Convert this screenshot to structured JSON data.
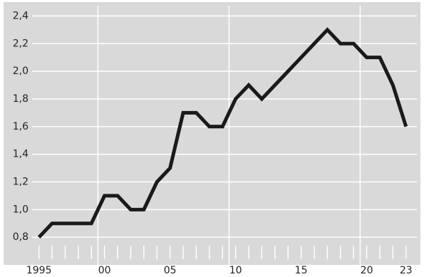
{
  "chart_data": {
    "type": "line",
    "x": [
      1995,
      1996,
      1997,
      1998,
      1999,
      2000,
      2001,
      2002,
      2003,
      2004,
      2005,
      2006,
      2007,
      2008,
      2009,
      2010,
      2011,
      2012,
      2013,
      2014,
      2015,
      2016,
      2017,
      2018,
      2019,
      2020,
      2021,
      2022,
      2023
    ],
    "values": [
      0.8,
      0.9,
      0.9,
      0.9,
      0.9,
      1.1,
      1.1,
      1.0,
      1.0,
      1.2,
      1.3,
      1.7,
      1.7,
      1.6,
      1.6,
      1.8,
      1.9,
      1.8,
      1.9,
      2.0,
      2.1,
      2.2,
      2.3,
      2.2,
      2.2,
      2.1,
      2.1,
      1.9,
      1.6
    ],
    "color": "#1a1a1a",
    "xlim": [
      1992.3,
      2024.1
    ],
    "xticks": [
      {
        "value": 1995,
        "label": "1995"
      },
      {
        "value": 2000,
        "label": "00"
      },
      {
        "value": 2005,
        "label": "05"
      },
      {
        "value": 2010,
        "label": "10"
      },
      {
        "value": 2015,
        "label": "15"
      },
      {
        "value": 2020,
        "label": "20"
      },
      {
        "value": 2023,
        "label": "23"
      }
    ],
    "xgrid": [
      1999.5,
      2009.5,
      2019.5
    ],
    "ylim": [
      0.6,
      2.5
    ],
    "yticks": [
      {
        "value": 0.8,
        "label": "0,8"
      },
      {
        "value": 1.0,
        "label": "1,0"
      },
      {
        "value": 1.2,
        "label": "1,2"
      },
      {
        "value": 1.4,
        "label": "1,4"
      },
      {
        "value": 1.6,
        "label": "1,6"
      },
      {
        "value": 1.8,
        "label": "1,8"
      },
      {
        "value": 2.0,
        "label": "2,0"
      },
      {
        "value": 2.2,
        "label": "2,2"
      },
      {
        "value": 2.4,
        "label": "2,4"
      }
    ],
    "grid": true
  }
}
